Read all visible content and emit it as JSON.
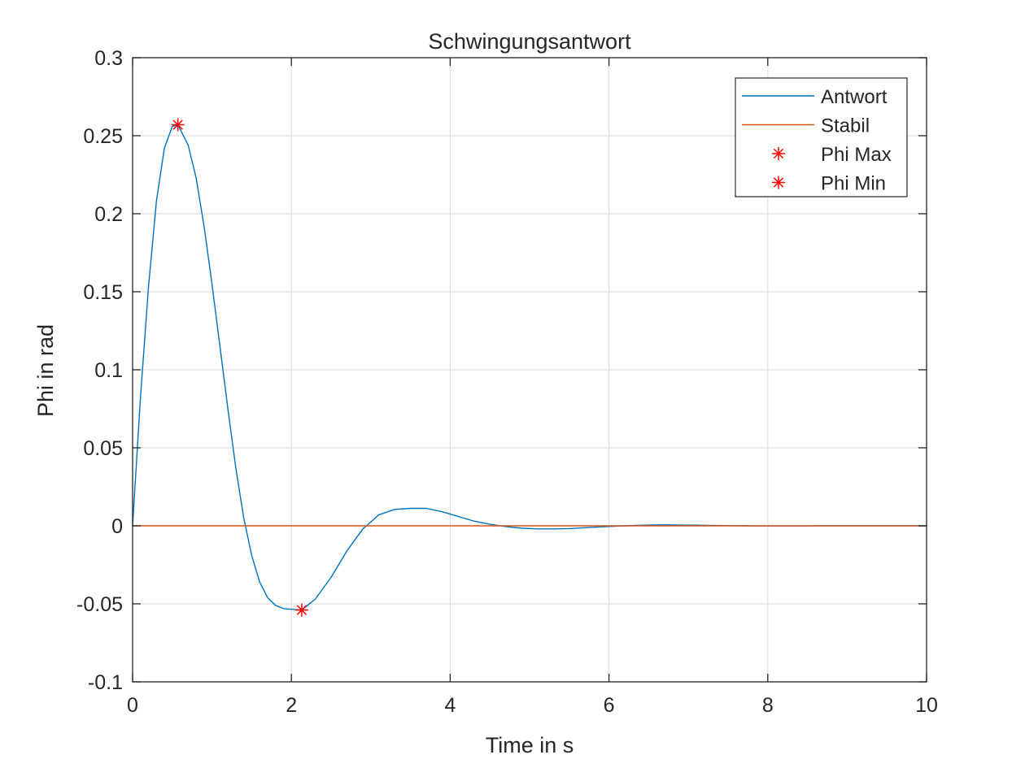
{
  "chart_data": {
    "type": "line",
    "title": "Schwingungsantwort",
    "xlabel": "Time in s",
    "ylabel": "Phi in rad",
    "xlim": [
      0,
      10
    ],
    "ylim": [
      -0.1,
      0.3
    ],
    "xticks": [
      0,
      2,
      4,
      6,
      8,
      10
    ],
    "xtick_labels": [
      "0",
      "2",
      "4",
      "6",
      "8",
      "10"
    ],
    "yticks": [
      -0.1,
      -0.05,
      0,
      0.05,
      0.1,
      0.15,
      0.2,
      0.25,
      0.3
    ],
    "ytick_labels": [
      "-0.1",
      "-0.05",
      "0",
      "0.05",
      "0.1",
      "0.15",
      "0.2",
      "0.25",
      "0.3"
    ],
    "grid": true,
    "legend_position": "top-right",
    "series": [
      {
        "name": "Antwort",
        "color": "#0072BD",
        "x": [
          0,
          0.1,
          0.2,
          0.3,
          0.4,
          0.5,
          0.57,
          0.7,
          0.8,
          0.9,
          1.0,
          1.1,
          1.2,
          1.3,
          1.4,
          1.5,
          1.6,
          1.7,
          1.8,
          1.9,
          2.0,
          2.13,
          2.3,
          2.5,
          2.7,
          2.9,
          3.1,
          3.3,
          3.5,
          3.7,
          3.9,
          4.1,
          4.3,
          4.5,
          4.7,
          4.9,
          5.1,
          5.3,
          5.5,
          5.7,
          5.9,
          6.1,
          6.3,
          6.5,
          6.7,
          6.9,
          7.1,
          7.3,
          7.5,
          7.7,
          7.9,
          8.1,
          8.3,
          8.5,
          8.7,
          8.9,
          9.1,
          9.3,
          9.5,
          9.7,
          9.9,
          10.0
        ],
        "y": [
          0,
          0.083,
          0.153,
          0.208,
          0.242,
          0.256,
          0.257,
          0.244,
          0.223,
          0.192,
          0.155,
          0.115,
          0.075,
          0.037,
          0.005,
          -0.019,
          -0.036,
          -0.046,
          -0.051,
          -0.053,
          -0.0535,
          -0.054,
          -0.047,
          -0.033,
          -0.016,
          -0.002,
          0.007,
          0.0105,
          0.0112,
          0.0112,
          0.009,
          0.006,
          0.003,
          0.001,
          -0.0005,
          -0.0015,
          -0.002,
          -0.002,
          -0.0018,
          -0.0012,
          -0.0007,
          -0.0002,
          0.0002,
          0.0005,
          0.0006,
          0.0005,
          0.0004,
          0.0002,
          0.0001,
          0,
          -0.0001,
          -0.0001,
          -0.0001,
          -0.0001,
          0,
          0,
          0,
          0,
          0,
          0,
          0,
          0
        ]
      },
      {
        "name": "Stabil",
        "color": "#D95319",
        "x": [
          0,
          10
        ],
        "y": [
          0,
          0
        ]
      },
      {
        "name": "Phi Max",
        "color": "#FF0000",
        "marker": "asterisk",
        "x": [
          0.57
        ],
        "y": [
          0.257
        ]
      },
      {
        "name": "Phi Min",
        "color": "#FF0000",
        "marker": "asterisk",
        "x": [
          2.13
        ],
        "y": [
          -0.054
        ]
      }
    ]
  }
}
